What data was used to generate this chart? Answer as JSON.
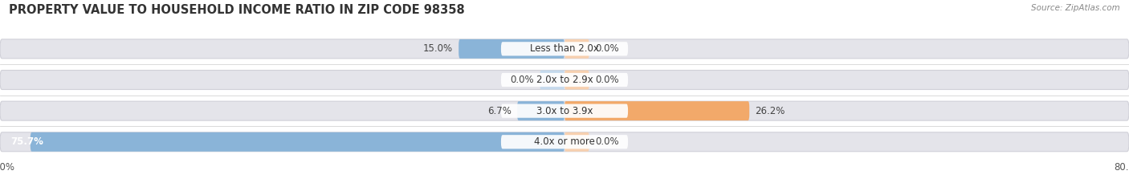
{
  "title": "PROPERTY VALUE TO HOUSEHOLD INCOME RATIO IN ZIP CODE 98358",
  "source": "Source: ZipAtlas.com",
  "categories": [
    "Less than 2.0x",
    "2.0x to 2.9x",
    "3.0x to 3.9x",
    "4.0x or more"
  ],
  "without_mortgage": [
    15.0,
    0.0,
    6.7,
    75.7
  ],
  "with_mortgage": [
    0.0,
    0.0,
    26.2,
    0.0
  ],
  "x_min": -80.0,
  "x_max": 80.0,
  "color_without": "#8ab4d8",
  "color_without_faint": "#c5d9ec",
  "color_with": "#f2a96a",
  "color_with_faint": "#f7d0af",
  "background_bar": "#e4e4ea",
  "background_bar_border": "#d0d0d8",
  "title_fontsize": 10.5,
  "label_fontsize": 8.5,
  "tick_fontsize": 8.5,
  "legend_fontsize": 8.5,
  "min_stub": 3.5
}
